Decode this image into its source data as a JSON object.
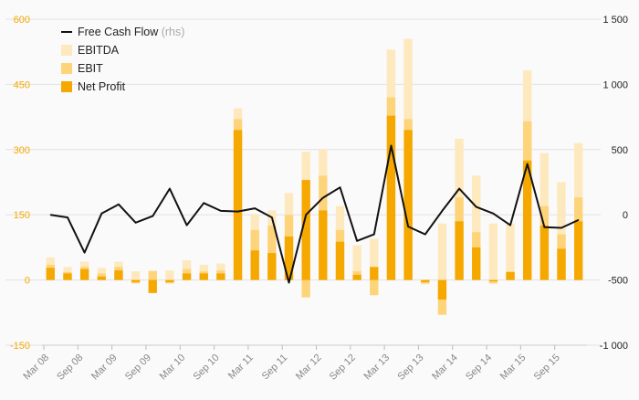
{
  "chart_data": {
    "type": "bar",
    "categories": [
      "Mar 08",
      "Jun 08",
      "Sep 08",
      "Dec 08",
      "Mar 09",
      "Jun 09",
      "Sep 09",
      "Dec 09",
      "Mar 10",
      "Jun 10",
      "Sep 10",
      "Dec 10",
      "Mar 11",
      "Jun 11",
      "Sep 11",
      "Dec 11",
      "Mar 12",
      "Jun 12",
      "Sep 12",
      "Dec 12",
      "Mar 13",
      "Jun 13",
      "Sep 13",
      "Dec 13",
      "Mar 14",
      "Jun 14",
      "Sep 14",
      "Dec 14",
      "Mar 15",
      "Jun 15",
      "Sep 15",
      "Dec 15"
    ],
    "x_tick_labels": [
      "Mar 08",
      "Sep 08",
      "Mar 09",
      "Sep 09",
      "Mar 10",
      "Sep 10",
      "Mar 11",
      "Sep 11",
      "Mar 12",
      "Sep 12",
      "Mar 13",
      "Sep 13",
      "Mar 14",
      "Sep 14",
      "Mar 15",
      "Sep 15"
    ],
    "series": [
      {
        "name": "EBITDA",
        "axis": "left",
        "color": "#fde9bd",
        "values": [
          52,
          30,
          42,
          28,
          42,
          20,
          22,
          22,
          45,
          35,
          38,
          395,
          152,
          160,
          200,
          295,
          300,
          170,
          80,
          95,
          530,
          555,
          -10,
          130,
          325,
          240,
          130,
          130,
          482,
          292,
          225,
          315
        ]
      },
      {
        "name": "EBIT",
        "axis": "left",
        "color": "#fdd47a",
        "values": [
          35,
          18,
          30,
          15,
          30,
          -8,
          20,
          -8,
          25,
          20,
          22,
          370,
          115,
          125,
          150,
          -40,
          240,
          115,
          20,
          -35,
          420,
          370,
          -8,
          -80,
          190,
          110,
          -8,
          20,
          365,
          170,
          105,
          190
        ]
      },
      {
        "name": "Net Profit",
        "axis": "left",
        "color": "#f5a800",
        "values": [
          28,
          15,
          25,
          8,
          22,
          -5,
          -30,
          -5,
          15,
          15,
          15,
          345,
          68,
          62,
          100,
          230,
          160,
          88,
          12,
          30,
          378,
          345,
          -5,
          -45,
          135,
          75,
          -3,
          18,
          275,
          125,
          72,
          135
        ]
      },
      {
        "name": "Free Cash Flow",
        "name_suffix": "(rhs)",
        "axis": "right",
        "type": "line",
        "color": "#111111",
        "values": [
          0,
          -20,
          -290,
          10,
          80,
          -60,
          -10,
          200,
          -80,
          90,
          30,
          25,
          50,
          -20,
          -520,
          0,
          130,
          210,
          -200,
          -150,
          530,
          -90,
          -150,
          30,
          200,
          60,
          10,
          -80,
          390,
          -95,
          -100,
          -40
        ]
      }
    ],
    "ylim_left": [
      -150,
      600
    ],
    "ylim_right": [
      -1000,
      1500
    ],
    "yticks_left": [
      "600",
      "450",
      "300",
      "150",
      "0",
      "-150"
    ],
    "yticks_right": [
      "1 500",
      "1 000",
      "500",
      "0",
      "-500",
      "-1 000"
    ],
    "grid": true,
    "legend_position": "top-left",
    "xlabel": "",
    "ylabel": ""
  },
  "colors": {
    "left_axis": "#f5a800",
    "grid": "#e2e2e2",
    "line": "#111111"
  }
}
